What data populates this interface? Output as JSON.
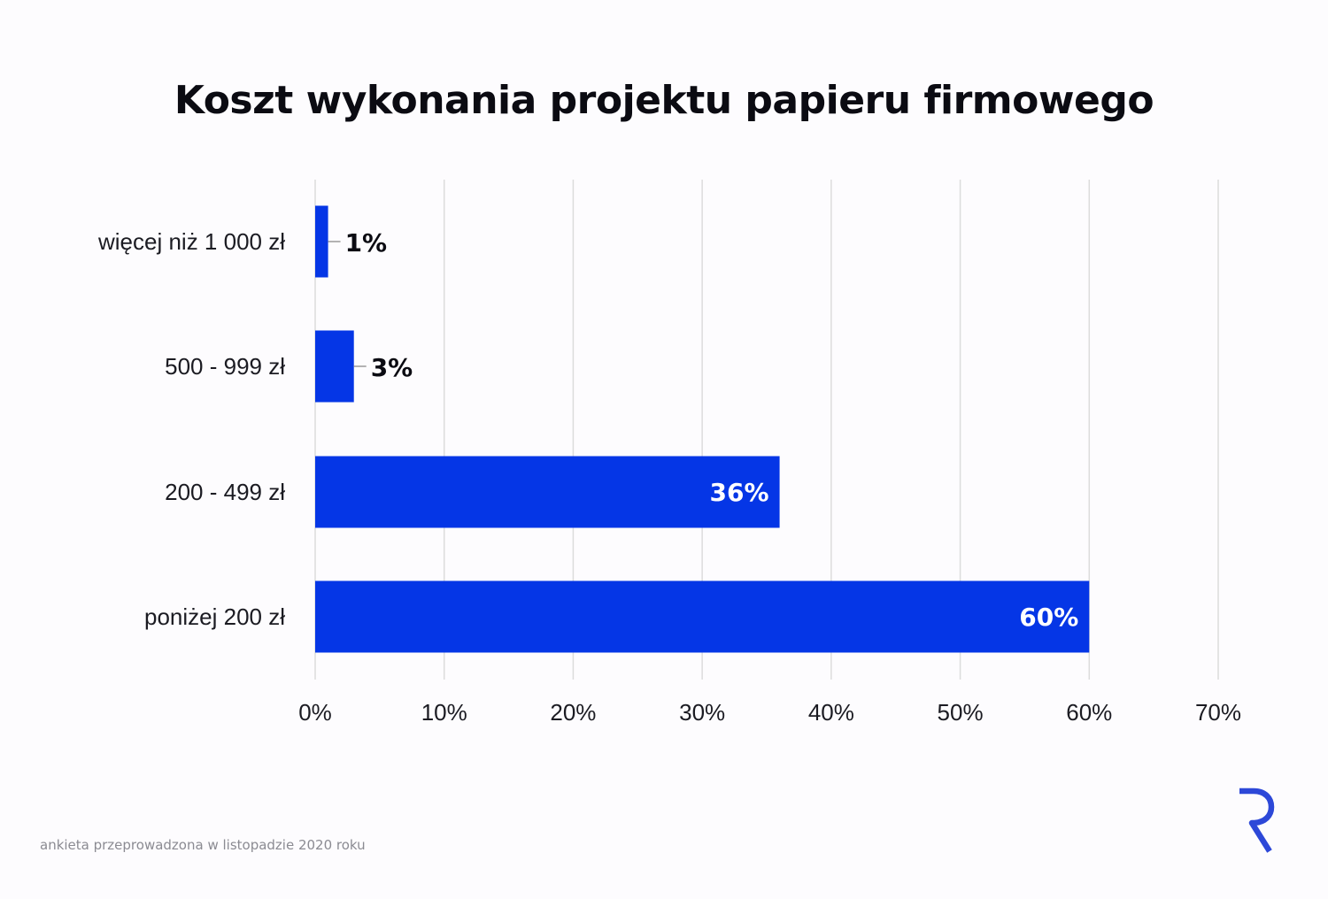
{
  "title": "Koszt wykonania projektu papieru firmowego",
  "footnote": "ankieta przeprowadzona w listopadzie 2020 roku",
  "colors": {
    "bar": "#0536e6",
    "grid": "#dcdcdc",
    "text": "#1b1b22",
    "logo": "#2d48d8"
  },
  "logo": {
    "icon": "r-logo-icon"
  },
  "chart_data": {
    "type": "bar",
    "orientation": "horizontal",
    "categories": [
      "więcej niż 1 000 zł",
      "500 - 999 zł",
      "200 - 499 zł",
      "poniżej 200 zł"
    ],
    "values": [
      1,
      3,
      36,
      60
    ],
    "data_labels": [
      "1%",
      "3%",
      "36%",
      "60%"
    ],
    "xlim": [
      0,
      70
    ],
    "xticks": [
      0,
      10,
      20,
      30,
      40,
      50,
      60,
      70
    ],
    "xtick_labels": [
      "0%",
      "10%",
      "20%",
      "30%",
      "40%",
      "50%",
      "60%",
      "70%"
    ],
    "grid": true,
    "xlabel": "",
    "ylabel": ""
  }
}
